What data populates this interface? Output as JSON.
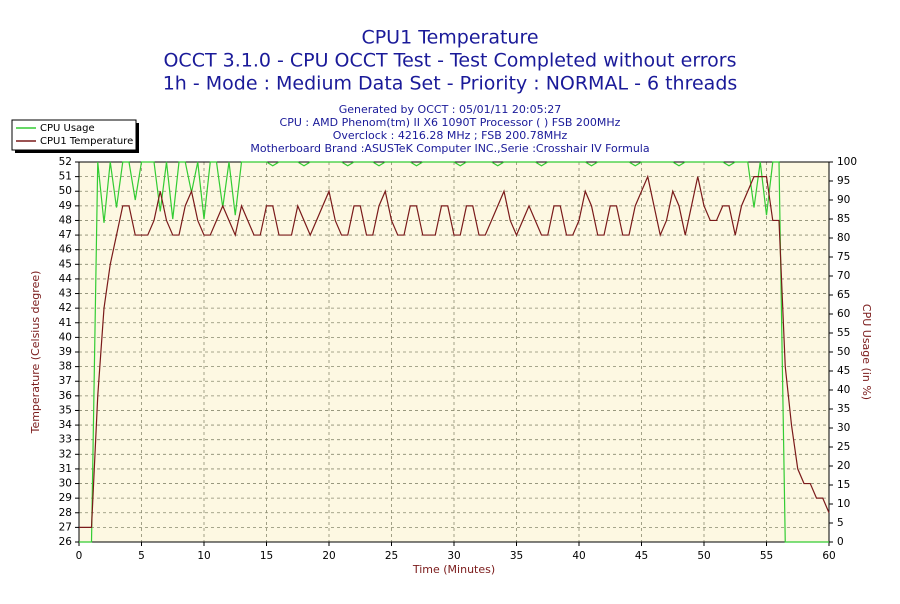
{
  "chart_data": {
    "type": "line",
    "title": "CPU1 Temperature",
    "subtitle": [
      "OCCT 3.1.0 - CPU OCCT Test - Test Completed without errors",
      "1h - Mode : Medium Data Set - Priority : NORMAL - 6 threads"
    ],
    "info": [
      "Generated by OCCT : 05/01/11 20:05:27",
      "CPU : AMD Phenom(tm) II X6 1090T Processor (  ) FSB 200MHz",
      "Overclock : 4216.28 MHz ; FSB 200.78MHz",
      "Motherboard Brand :ASUSTeK Computer INC.,Serie :Crosshair IV Formula"
    ],
    "xlabel": "Time (Minutes)",
    "ylabel": "Temperature (Celsius degree)",
    "y2label": "CPU Usage (in %)",
    "xlim": [
      0,
      60
    ],
    "xticks": [
      0,
      5,
      10,
      15,
      20,
      25,
      30,
      35,
      40,
      45,
      50,
      55,
      60
    ],
    "ylim": [
      26,
      52
    ],
    "yticks": [
      26,
      27,
      28,
      29,
      30,
      31,
      32,
      33,
      34,
      35,
      36,
      37,
      38,
      39,
      40,
      41,
      42,
      43,
      44,
      45,
      46,
      47,
      48,
      49,
      50,
      51,
      52
    ],
    "y2lim": [
      0,
      100
    ],
    "y2ticks": [
      0,
      5,
      10,
      15,
      20,
      25,
      30,
      35,
      40,
      45,
      50,
      55,
      60,
      65,
      70,
      75,
      80,
      85,
      90,
      95,
      100
    ],
    "grid": true,
    "legend": "top-left",
    "x": [
      0,
      0.5,
      1,
      1.5,
      2,
      2.5,
      3,
      3.5,
      4,
      4.5,
      5,
      5.5,
      6,
      6.5,
      7,
      7.5,
      8,
      8.5,
      9,
      9.5,
      10,
      10.5,
      11,
      11.5,
      12,
      12.5,
      13,
      13.5,
      14,
      14.5,
      15,
      15.5,
      16,
      16.5,
      17,
      17.5,
      18,
      18.5,
      19,
      19.5,
      20,
      20.5,
      21,
      21.5,
      22,
      22.5,
      23,
      23.5,
      24,
      24.5,
      25,
      25.5,
      26,
      26.5,
      27,
      27.5,
      28,
      28.5,
      29,
      29.5,
      30,
      30.5,
      31,
      31.5,
      32,
      32.5,
      33,
      33.5,
      34,
      34.5,
      35,
      35.5,
      36,
      36.5,
      37,
      37.5,
      38,
      38.5,
      39,
      39.5,
      40,
      40.5,
      41,
      41.5,
      42,
      42.5,
      43,
      43.5,
      44,
      44.5,
      45,
      45.5,
      46,
      46.5,
      47,
      47.5,
      48,
      48.5,
      49,
      49.5,
      50,
      50.5,
      51,
      51.5,
      52,
      52.5,
      53,
      53.5,
      54,
      54.5,
      55,
      55.5,
      56,
      56.5,
      57,
      57.5,
      58,
      58.5,
      59,
      59.5,
      60
    ],
    "series": [
      {
        "name": "CPU Usage",
        "color": "#33cc33",
        "axis": "y2",
        "values": [
          0,
          0,
          0,
          100,
          84,
          100,
          88,
          100,
          100,
          90,
          100,
          100,
          100,
          87,
          100,
          85,
          100,
          100,
          92,
          100,
          85,
          100,
          100,
          88,
          100,
          86,
          100,
          100,
          100,
          100,
          100,
          99,
          100,
          100,
          100,
          100,
          99,
          100,
          100,
          100,
          100,
          100,
          100,
          99,
          100,
          100,
          100,
          100,
          99,
          100,
          100,
          100,
          100,
          100,
          99,
          100,
          100,
          100,
          100,
          100,
          100,
          99,
          100,
          100,
          100,
          100,
          100,
          99,
          100,
          100,
          100,
          100,
          100,
          100,
          99,
          100,
          100,
          100,
          100,
          100,
          100,
          100,
          99,
          100,
          100,
          100,
          100,
          100,
          100,
          99,
          100,
          100,
          100,
          100,
          100,
          100,
          99,
          100,
          100,
          100,
          100,
          100,
          100,
          100,
          99,
          100,
          100,
          100,
          88,
          100,
          86,
          100,
          100,
          0,
          0,
          0,
          0,
          0,
          0,
          0,
          0
        ]
      },
      {
        "name": "CPU1 Temperature",
        "color": "#7a1a1a",
        "values": [
          27,
          27,
          27,
          36,
          42,
          45,
          47,
          49,
          49,
          47,
          47,
          47,
          48,
          50,
          48,
          47,
          47,
          49,
          50,
          48,
          47,
          47,
          48,
          49,
          48,
          47,
          49,
          48,
          47,
          47,
          49,
          49,
          47,
          47,
          47,
          49,
          48,
          47,
          48,
          49,
          50,
          48,
          47,
          47,
          49,
          49,
          47,
          47,
          49,
          50,
          48,
          47,
          47,
          49,
          49,
          47,
          47,
          47,
          49,
          49,
          47,
          47,
          49,
          49,
          47,
          47,
          48,
          49,
          50,
          48,
          47,
          48,
          49,
          48,
          47,
          47,
          49,
          49,
          47,
          47,
          48,
          50,
          49,
          47,
          47,
          49,
          49,
          47,
          47,
          49,
          50,
          51,
          49,
          47,
          48,
          50,
          49,
          47,
          49,
          51,
          49,
          48,
          48,
          49,
          49,
          47,
          49,
          50,
          51,
          51,
          51,
          48,
          48,
          38,
          34,
          31,
          30,
          30,
          29,
          29,
          28
        ]
      }
    ]
  }
}
